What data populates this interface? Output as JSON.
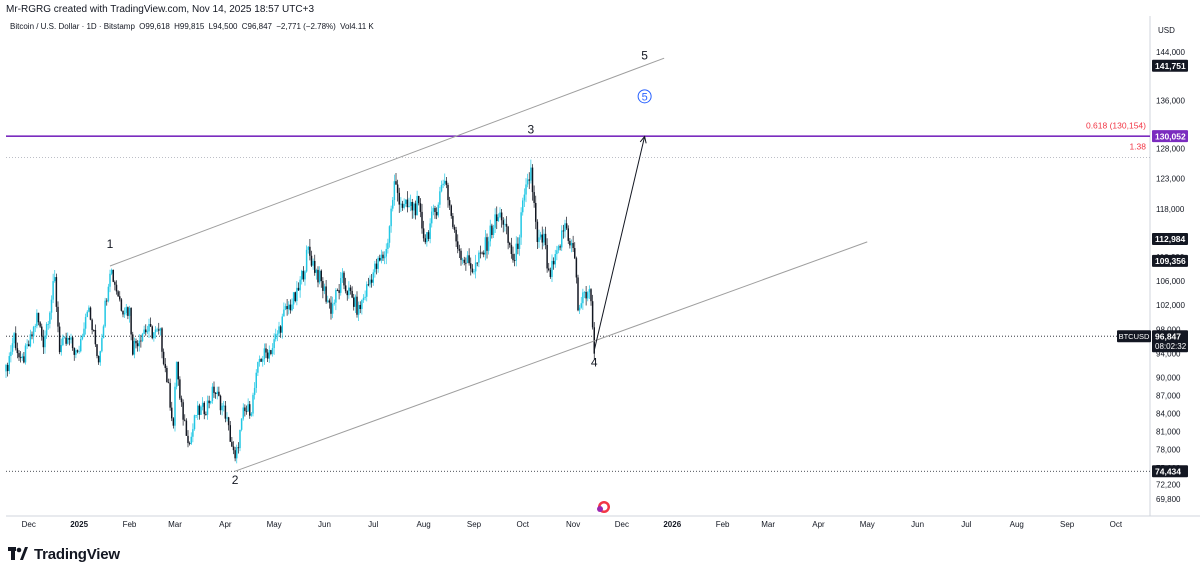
{
  "header": {
    "credit": "Mr-RGRG created with TradingView.com, Nov 14, 2025 18:57 UTC+3",
    "symbol_title": "Bitcoin / U.S. Dollar · 1D · Bitstamp",
    "ohlc": {
      "open": "O99,618",
      "high": "H99,815",
      "low": "L94,500",
      "close": "C96,847",
      "change": "−2,771 (−2.78%)",
      "volume": "Vol4.11 K"
    }
  },
  "footer": {
    "brand": "TradingView"
  },
  "colors": {
    "up": "#22c7e4",
    "down": "#131722",
    "channel": "#9e9e9e",
    "target": "#7b2cbf",
    "fib": "#f23645",
    "price_label": "#131722"
  },
  "chart_data": {
    "type": "candlestick",
    "currency_label": "USD",
    "ylim": [
      67000,
      150000
    ],
    "y_ticks": [
      144000,
      136000,
      128000,
      123000,
      118000,
      110000,
      106000,
      102000,
      98000,
      94000,
      90000,
      87000,
      84000,
      81000,
      78000,
      75000,
      72200,
      69800
    ],
    "y_tick_labels": [
      "144,000",
      "136,000",
      "128,000",
      "123,000",
      "118,000",
      "110,000",
      "106,000",
      "102,000",
      "98,000",
      "94,000",
      "90,000",
      "87,000",
      "84,000",
      "81,000",
      "78,000",
      "75,000",
      "72,200",
      "69,800"
    ],
    "x_start": "2024-11-17",
    "x_end": "2026-10-22",
    "x_ticks": [
      {
        "date": "2024-12-01",
        "label": "Dec",
        "bold": false
      },
      {
        "date": "2025-01-01",
        "label": "2025",
        "bold": true
      },
      {
        "date": "2025-02-01",
        "label": "Feb",
        "bold": false
      },
      {
        "date": "2025-03-01",
        "label": "Mar",
        "bold": false
      },
      {
        "date": "2025-04-01",
        "label": "Apr",
        "bold": false
      },
      {
        "date": "2025-05-01",
        "label": "May",
        "bold": false
      },
      {
        "date": "2025-06-01",
        "label": "Jun",
        "bold": false
      },
      {
        "date": "2025-07-01",
        "label": "Jul",
        "bold": false
      },
      {
        "date": "2025-08-01",
        "label": "Aug",
        "bold": false
      },
      {
        "date": "2025-09-01",
        "label": "Sep",
        "bold": false
      },
      {
        "date": "2025-10-01",
        "label": "Oct",
        "bold": false
      },
      {
        "date": "2025-11-01",
        "label": "Nov",
        "bold": false
      },
      {
        "date": "2025-12-01",
        "label": "Dec",
        "bold": false
      },
      {
        "date": "2026-01-01",
        "label": "2026",
        "bold": true
      },
      {
        "date": "2026-02-01",
        "label": "Feb",
        "bold": false
      },
      {
        "date": "2026-03-01",
        "label": "Mar",
        "bold": false
      },
      {
        "date": "2026-04-01",
        "label": "Apr",
        "bold": false
      },
      {
        "date": "2026-05-01",
        "label": "May",
        "bold": false
      },
      {
        "date": "2026-06-01",
        "label": "Jun",
        "bold": false
      },
      {
        "date": "2026-07-01",
        "label": "Jul",
        "bold": false
      },
      {
        "date": "2026-08-01",
        "label": "Aug",
        "bold": false
      },
      {
        "date": "2026-09-01",
        "label": "Sep",
        "bold": false
      },
      {
        "date": "2026-10-01",
        "label": "Oct",
        "bold": false
      }
    ],
    "price_path": [
      [
        "2024-11-17",
        91000
      ],
      [
        "2024-11-22",
        97000
      ],
      [
        "2024-11-26",
        92000
      ],
      [
        "2024-12-02",
        96000
      ],
      [
        "2024-12-06",
        100000
      ],
      [
        "2024-12-10",
        96000
      ],
      [
        "2024-12-17",
        106000
      ],
      [
        "2024-12-20",
        95000
      ],
      [
        "2024-12-26",
        96000
      ],
      [
        "2024-12-31",
        93500
      ],
      [
        "2025-01-06",
        102000
      ],
      [
        "2025-01-13",
        93000
      ],
      [
        "2025-01-20",
        108500
      ],
      [
        "2025-01-27",
        102000
      ],
      [
        "2025-02-01",
        101000
      ],
      [
        "2025-02-03",
        95000
      ],
      [
        "2025-02-10",
        98000
      ],
      [
        "2025-02-20",
        97000
      ],
      [
        "2025-02-25",
        88000
      ],
      [
        "2025-02-28",
        82000
      ],
      [
        "2025-03-02",
        93000
      ],
      [
        "2025-03-04",
        86000
      ],
      [
        "2025-03-10",
        79000
      ],
      [
        "2025-03-14",
        84000
      ],
      [
        "2025-03-20",
        85000
      ],
      [
        "2025-03-25",
        88000
      ],
      [
        "2025-04-01",
        84000
      ],
      [
        "2025-04-07",
        76000
      ],
      [
        "2025-04-12",
        84000
      ],
      [
        "2025-04-17",
        85000
      ],
      [
        "2025-04-22",
        93000
      ],
      [
        "2025-04-30",
        95000
      ],
      [
        "2025-05-08",
        101000
      ],
      [
        "2025-05-15",
        103500
      ],
      [
        "2025-05-22",
        111000
      ],
      [
        "2025-05-28",
        107000
      ],
      [
        "2025-06-05",
        101500
      ],
      [
        "2025-06-12",
        106000
      ],
      [
        "2025-06-22",
        101000
      ],
      [
        "2025-06-30",
        107000
      ],
      [
        "2025-07-09",
        111000
      ],
      [
        "2025-07-14",
        122000
      ],
      [
        "2025-07-20",
        118000
      ],
      [
        "2025-07-28",
        118500
      ],
      [
        "2025-08-02",
        113000
      ],
      [
        "2025-08-08",
        117500
      ],
      [
        "2025-08-14",
        123500
      ],
      [
        "2025-08-20",
        113500
      ],
      [
        "2025-08-25",
        110000
      ],
      [
        "2025-09-01",
        108000
      ],
      [
        "2025-09-07",
        111000
      ],
      [
        "2025-09-13",
        115500
      ],
      [
        "2025-09-18",
        117000
      ],
      [
        "2025-09-22",
        112500
      ],
      [
        "2025-09-26",
        109000
      ],
      [
        "2025-10-01",
        118000
      ],
      [
        "2025-10-06",
        124500
      ],
      [
        "2025-10-10",
        112000
      ],
      [
        "2025-10-14",
        113000
      ],
      [
        "2025-10-17",
        106500
      ],
      [
        "2025-10-22",
        110000
      ],
      [
        "2025-10-27",
        115500
      ],
      [
        "2025-11-02",
        110000
      ],
      [
        "2025-11-04",
        101500
      ],
      [
        "2025-11-07",
        103000
      ],
      [
        "2025-11-11",
        105000
      ],
      [
        "2025-11-14",
        95000
      ]
    ],
    "horizontal_lines": [
      {
        "name": "last-price",
        "price": 96847,
        "style": "dotted"
      },
      {
        "name": "low-74434",
        "price": 74434,
        "style": "dotted"
      },
      {
        "name": "target-line",
        "price": 130052,
        "style": "solid"
      },
      {
        "name": "fib-138",
        "price": 126500,
        "style": "dotted"
      }
    ],
    "trendlines": [
      {
        "name": "upper-channel",
        "from": [
          "2025-01-20",
          108500
        ],
        "to": [
          "2025-12-27",
          143000
        ]
      },
      {
        "name": "lower-channel",
        "from": [
          "2025-04-07",
          74434
        ],
        "to": [
          "2026-05-01",
          112500
        ]
      }
    ],
    "arrow": {
      "from": [
        "2025-11-14",
        94500
      ],
      "to": [
        "2025-12-15",
        130000
      ]
    },
    "wave_labels": [
      {
        "text": "1",
        "date": "2025-01-20",
        "price": 111500,
        "circled": false
      },
      {
        "text": "2",
        "date": "2025-04-07",
        "price": 72300,
        "circled": false
      },
      {
        "text": "3",
        "date": "2025-10-06",
        "price": 130500,
        "circled": false
      },
      {
        "text": "4",
        "date": "2025-11-14",
        "price": 91800,
        "circled": false
      },
      {
        "text": "5",
        "date": "2025-12-15",
        "price": 142800,
        "circled": false
      },
      {
        "text": "5",
        "date": "2025-12-15",
        "price": 136000,
        "circled": true
      }
    ],
    "fib_labels": [
      {
        "text": "0.618 (130,154)",
        "price": 131300
      },
      {
        "text": "1.38",
        "price": 127800
      }
    ],
    "price_labels": [
      {
        "text": "141,751",
        "price": 141751,
        "bg": "#131722",
        "color": "#ffffff"
      },
      {
        "text": "130,052",
        "price": 130052,
        "bg": "#7b2cbf",
        "color": "#ffffff"
      },
      {
        "text": "112,984",
        "price": 112984,
        "bg": "#131722",
        "color": "#ffffff"
      },
      {
        "text": "109,356",
        "price": 109356,
        "bg": "#131722",
        "color": "#ffffff"
      },
      {
        "text": "74,434",
        "price": 74434,
        "bg": "#131722",
        "color": "#ffffff"
      }
    ],
    "current_price": {
      "symbol": "BTCUSD",
      "price_text": "96,847",
      "countdown": "08:02:32",
      "price": 96847
    }
  }
}
